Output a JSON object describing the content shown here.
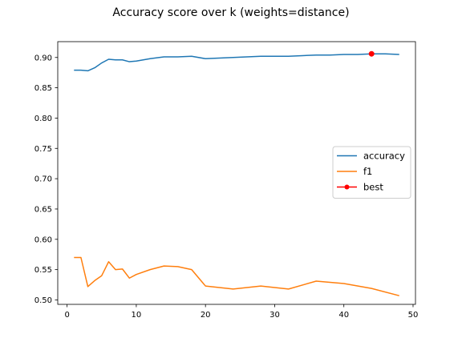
{
  "figure": {
    "title": "Accuracy score over k (weights=distance)"
  },
  "chart_data": {
    "type": "line",
    "title": "Accuracy score over k (weights=distance)",
    "xlabel": "",
    "ylabel": "",
    "xlim": [
      -1.35,
      50.35
    ],
    "ylim": [
      0.4927,
      0.9261
    ],
    "xticks": [
      0,
      10,
      20,
      30,
      40,
      50
    ],
    "xtick_labels": [
      "0",
      "10",
      "20",
      "30",
      "40",
      "50"
    ],
    "yticks": [
      0.5,
      0.55,
      0.6,
      0.65,
      0.7,
      0.75,
      0.8,
      0.85,
      0.9
    ],
    "ytick_labels": [
      "0.50",
      "0.55",
      "0.60",
      "0.65",
      "0.70",
      "0.75",
      "0.80",
      "0.85",
      "0.90"
    ],
    "grid": false,
    "legend_position": "center-right",
    "series": [
      {
        "name": "accuracy",
        "color": "#1f77b4",
        "marker": "none",
        "x": [
          1,
          2,
          3,
          4,
          5,
          6,
          7,
          8,
          9,
          10,
          12,
          14,
          16,
          18,
          20,
          22,
          24,
          26,
          28,
          30,
          32,
          34,
          36,
          38,
          40,
          42,
          44,
          46,
          48
        ],
        "y": [
          0.879,
          0.879,
          0.878,
          0.883,
          0.891,
          0.897,
          0.896,
          0.896,
          0.893,
          0.894,
          0.898,
          0.901,
          0.901,
          0.902,
          0.898,
          0.899,
          0.9,
          0.901,
          0.902,
          0.902,
          0.902,
          0.903,
          0.904,
          0.904,
          0.905,
          0.905,
          0.906,
          0.906,
          0.905
        ]
      },
      {
        "name": "f1",
        "color": "#ff7f0e",
        "marker": "none",
        "x": [
          1,
          2,
          3,
          4,
          5,
          6,
          7,
          8,
          9,
          10,
          12,
          14,
          16,
          18,
          20,
          24,
          28,
          32,
          36,
          40,
          44,
          48
        ],
        "y": [
          0.57,
          0.57,
          0.522,
          0.532,
          0.54,
          0.563,
          0.55,
          0.551,
          0.536,
          0.542,
          0.55,
          0.556,
          0.555,
          0.55,
          0.523,
          0.518,
          0.523,
          0.518,
          0.531,
          0.527,
          0.519,
          0.507
        ]
      },
      {
        "name": "best",
        "color": "#ff0000",
        "marker": "circle",
        "x": [
          44
        ],
        "y": [
          0.906
        ]
      }
    ]
  }
}
